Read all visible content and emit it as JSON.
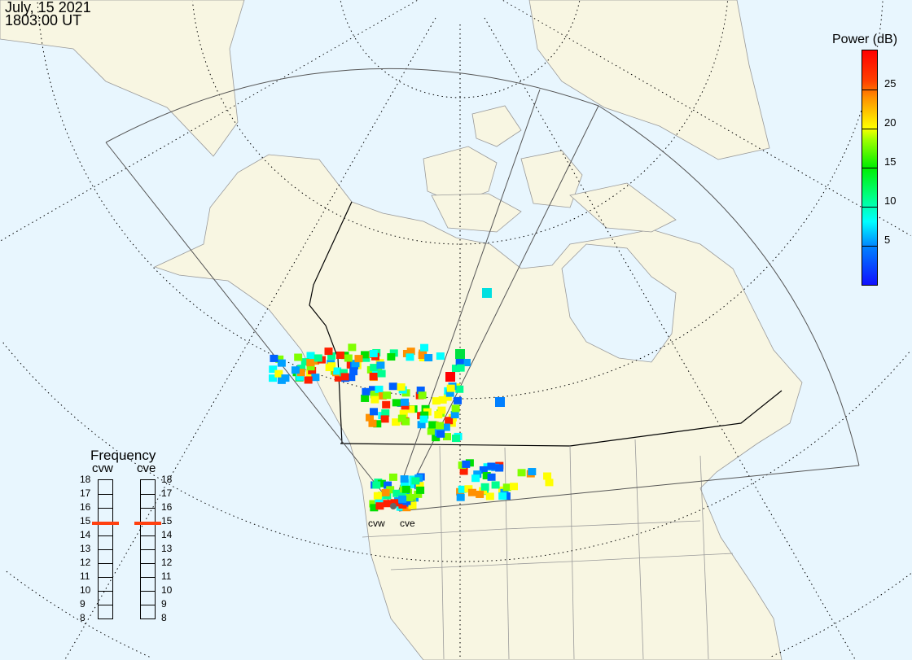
{
  "header": {
    "date": "July, 15 2021",
    "time": "1803:00 UT"
  },
  "colorbar": {
    "title": "Power (dB)",
    "range": [
      0,
      30
    ],
    "ticks": [
      {
        "value": 25,
        "label": "25"
      },
      {
        "value": 20,
        "label": "20"
      },
      {
        "value": 15,
        "label": "15"
      },
      {
        "value": 10,
        "label": "10"
      },
      {
        "value": 5,
        "label": "5"
      }
    ]
  },
  "frequency": {
    "title": "Frequency",
    "range": [
      8,
      18
    ],
    "labels": [
      "18",
      "17",
      "16",
      "15",
      "14",
      "13",
      "12",
      "11",
      "10",
      "9",
      "8"
    ],
    "radars": [
      {
        "name": "cvw",
        "value": 14.9
      },
      {
        "name": "cve",
        "value": 14.9
      }
    ],
    "marker_color": "#ff4010"
  },
  "map": {
    "ocean_color": "#e8f6fe",
    "land_color": "#f8f6e2",
    "sites": [
      {
        "name": "cvw"
      },
      {
        "name": "cve"
      }
    ]
  }
}
